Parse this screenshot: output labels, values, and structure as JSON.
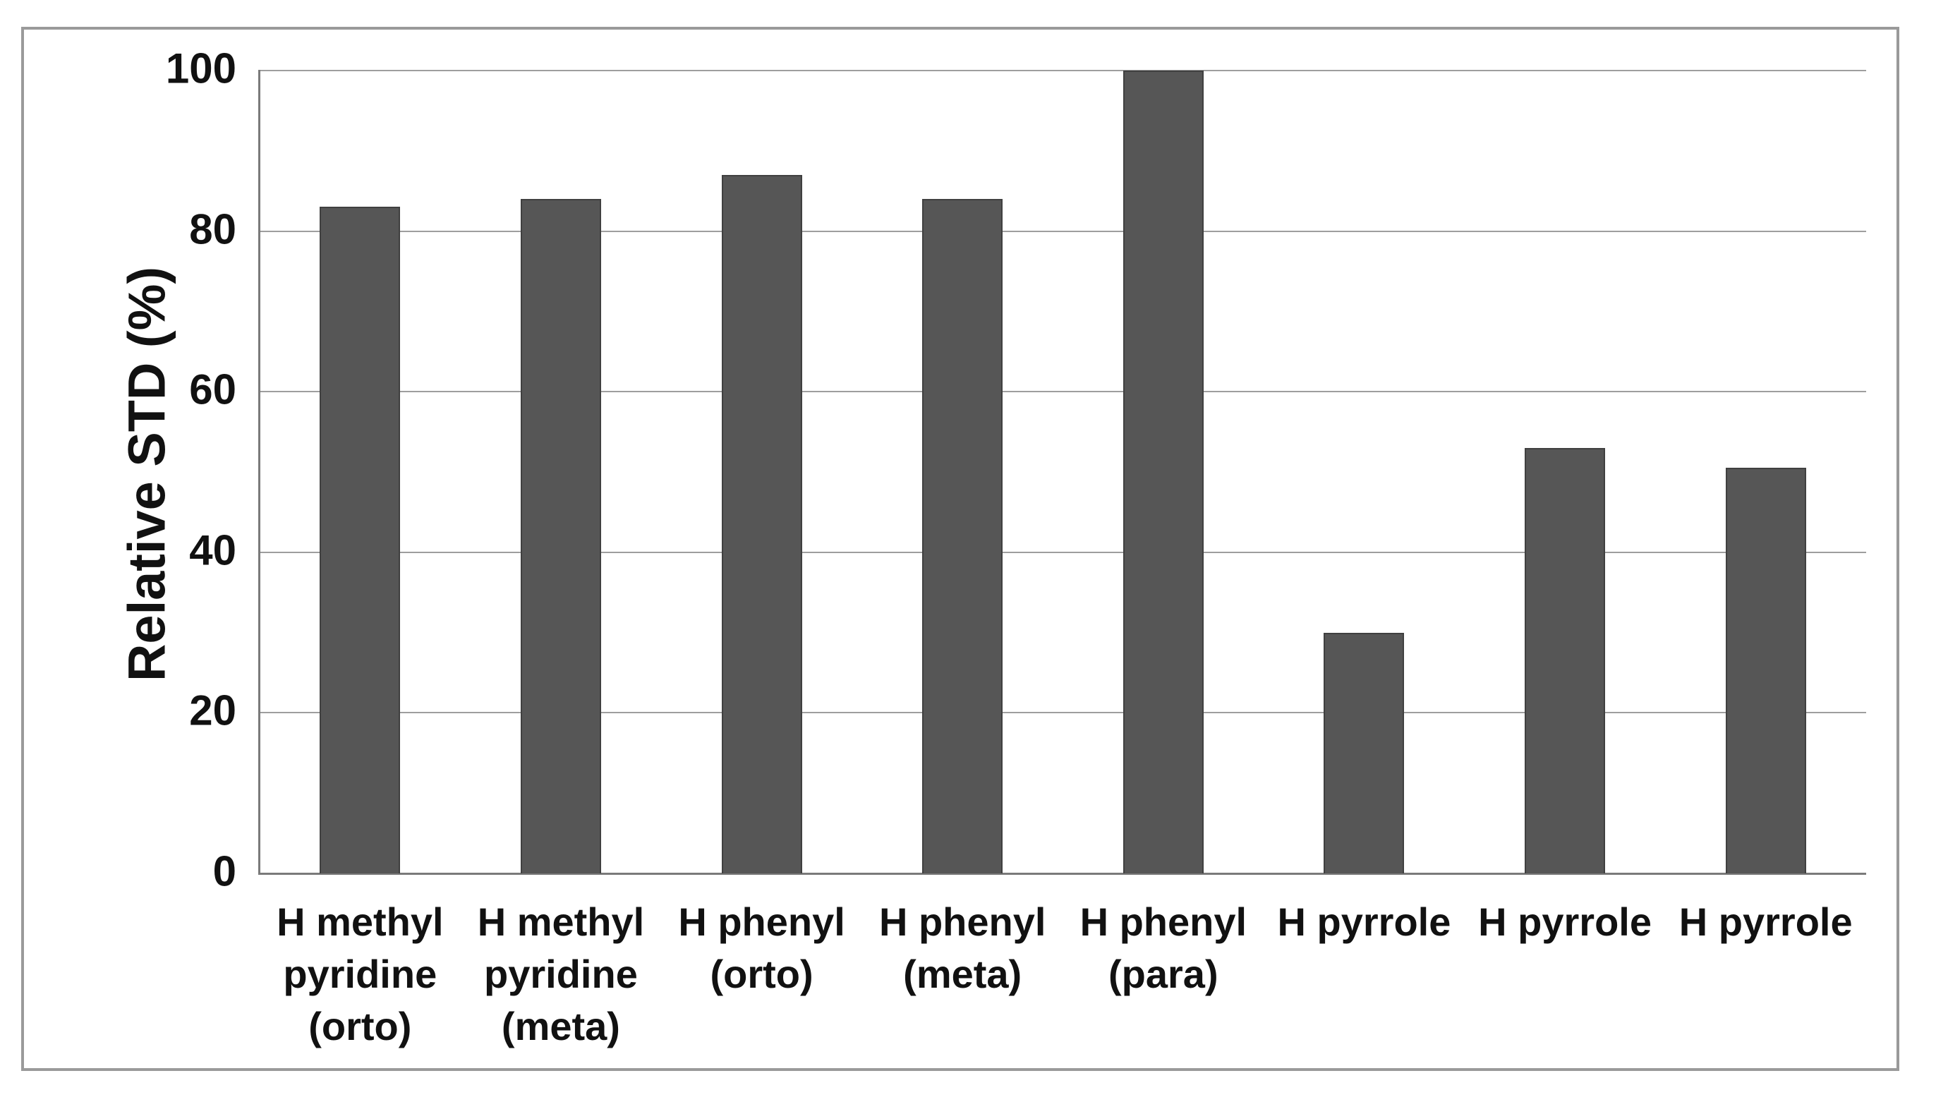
{
  "figure": {
    "background": "#ffffff",
    "border_color": "#9a9a9a"
  },
  "chart_data": {
    "type": "bar",
    "title": "",
    "xlabel": "",
    "ylabel": "Relative STD (%)",
    "ylim": [
      0,
      100
    ],
    "yticks": [
      0,
      20,
      40,
      60,
      80,
      100
    ],
    "grid": true,
    "legend": false,
    "categories": [
      "H methyl pyridine (orto)",
      "H methyl pyridine (meta)",
      "H phenyl (orto)",
      "H phenyl (meta)",
      "H phenyl (para)",
      "H pyrrole",
      "H pyrrole",
      "H pyrrole"
    ],
    "category_label_lines": [
      [
        "H methyl",
        "pyridine",
        "(orto)"
      ],
      [
        "H methyl",
        "pyridine",
        "(meta)"
      ],
      [
        "H phenyl",
        "(orto)"
      ],
      [
        "H phenyl",
        "(meta)"
      ],
      [
        "H phenyl",
        "(para)"
      ],
      [
        "H pyrrole"
      ],
      [
        "H pyrrole"
      ],
      [
        "H pyrrole"
      ]
    ],
    "values": [
      83,
      84,
      87,
      84,
      100,
      30,
      53,
      50.5
    ],
    "colors": {
      "bar_fill": "#565656",
      "bar_border": "#404040",
      "gridline": "#9e9e9e",
      "axis_line": "#7a7a7a",
      "text": "#111111"
    }
  }
}
